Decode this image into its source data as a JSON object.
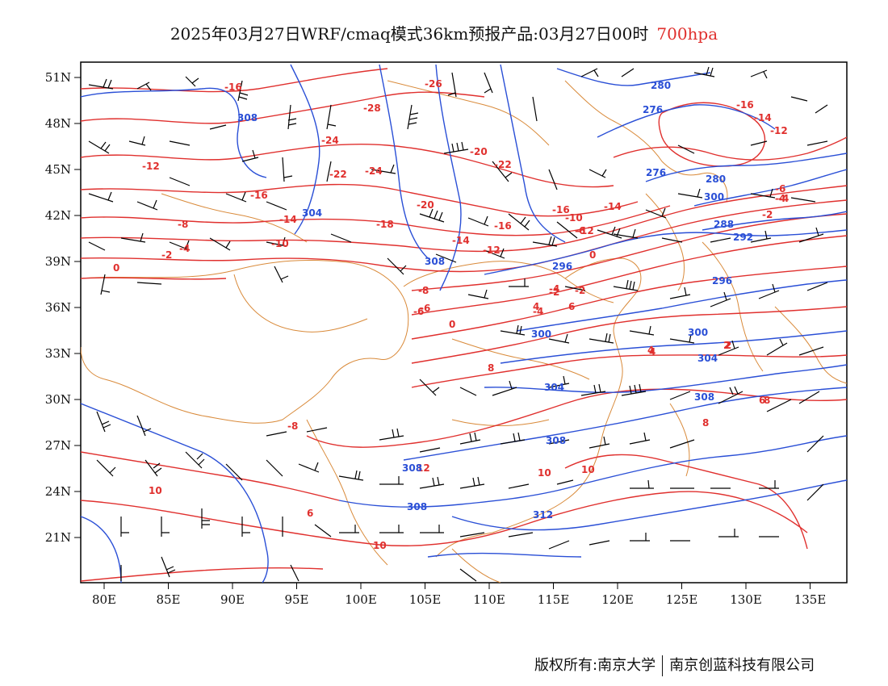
{
  "title": {
    "text": "2025年03月27日WRF/cmaq模式36km预报产品:03月27日00时",
    "level": "700hpa"
  },
  "credit": {
    "owner1": "版权所有:南京大学",
    "owner2": "南京创蓝科技有限公司"
  },
  "axes": {
    "lon_ticks": [
      "80E",
      "85E",
      "90E",
      "95E",
      "100E",
      "105E",
      "110E",
      "115E",
      "120E",
      "125E",
      "130E",
      "135E"
    ],
    "lat_ticks": [
      "51N",
      "48N",
      "45N",
      "42N",
      "39N",
      "36N",
      "33N",
      "30N",
      "27N",
      "24N",
      "21N"
    ]
  },
  "colors": {
    "temperature": "#e0302e",
    "geopotential": "#2a4fd6",
    "boundary": "#d98a3a",
    "wind": "#000000"
  },
  "temperature_labels": [
    "-16",
    "-26",
    "-28",
    "-24",
    "-22",
    "-24",
    "-20",
    "-22",
    "-20",
    "-18",
    "-16",
    "-14",
    "-16",
    "-12",
    "-10",
    "-4",
    "-2",
    "0",
    "-16",
    "-14",
    "-12",
    "-14",
    "-12",
    "-10",
    "-8",
    "-6",
    "-4",
    "-2",
    "0",
    "-8",
    "-6",
    "-4",
    "-2",
    "0",
    "2",
    "4",
    "6",
    "4",
    "8",
    "8",
    "8",
    "-8",
    "12",
    "10",
    "10",
    "10",
    "6",
    "10",
    "-6",
    "-4",
    "-2",
    "-16",
    "-14",
    "-12",
    "-6",
    "-4",
    "4",
    "2",
    "6"
  ],
  "height_labels": [
    "280",
    "276",
    "276",
    "280",
    "288",
    "292",
    "296",
    "296",
    "300",
    "300",
    "304",
    "304",
    "308",
    "308",
    "308",
    "308",
    "312",
    "308",
    "304",
    "300",
    "308"
  ],
  "wind_barbs_note": "wind barbs"
}
